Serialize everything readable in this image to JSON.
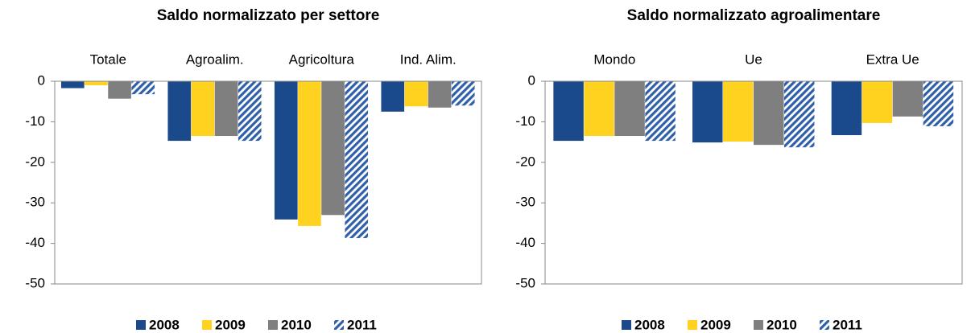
{
  "chart_data": [
    {
      "type": "bar",
      "title": "Saldo normalizzato per settore",
      "categories": [
        "Totale",
        "Agroalim.",
        "Agricoltura",
        "Ind. Alim."
      ],
      "series": [
        {
          "name": "2008",
          "color": "#1b4a8c",
          "values": [
            -1.7,
            -14.7,
            -34.1,
            -7.5
          ]
        },
        {
          "name": "2009",
          "color": "#ffd21f",
          "values": [
            -1,
            -13.5,
            -35.7,
            -6.2
          ]
        },
        {
          "name": "2010",
          "color": "#7f7f7f",
          "values": [
            -4.3,
            -13.5,
            -33,
            -6.5
          ]
        },
        {
          "name": "2011",
          "color": "#2e5fa8",
          "hatch": true,
          "values": [
            -3.2,
            -14.7,
            -38.7,
            -6
          ]
        }
      ],
      "ylim": [
        -50,
        0
      ],
      "yticks": [
        0,
        -10,
        -20,
        -30,
        -40,
        -50
      ],
      "grid": false
    },
    {
      "type": "bar",
      "title": "Saldo normalizzato agroalimentare",
      "categories": [
        "Mondo",
        "Ue",
        "Extra Ue"
      ],
      "series": [
        {
          "name": "2008",
          "color": "#1b4a8c",
          "values": [
            -14.7,
            -15.1,
            -13.3
          ]
        },
        {
          "name": "2009",
          "color": "#ffd21f",
          "values": [
            -13.5,
            -14.9,
            -10.3
          ]
        },
        {
          "name": "2010",
          "color": "#7f7f7f",
          "values": [
            -13.5,
            -15.7,
            -8.7
          ]
        },
        {
          "name": "2011",
          "color": "#2e5fa8",
          "hatch": true,
          "values": [
            -14.7,
            -16.3,
            -11.1
          ]
        }
      ],
      "ylim": [
        -50,
        0
      ],
      "yticks": [
        0,
        -10,
        -20,
        -30,
        -40,
        -50
      ],
      "grid": false
    }
  ]
}
